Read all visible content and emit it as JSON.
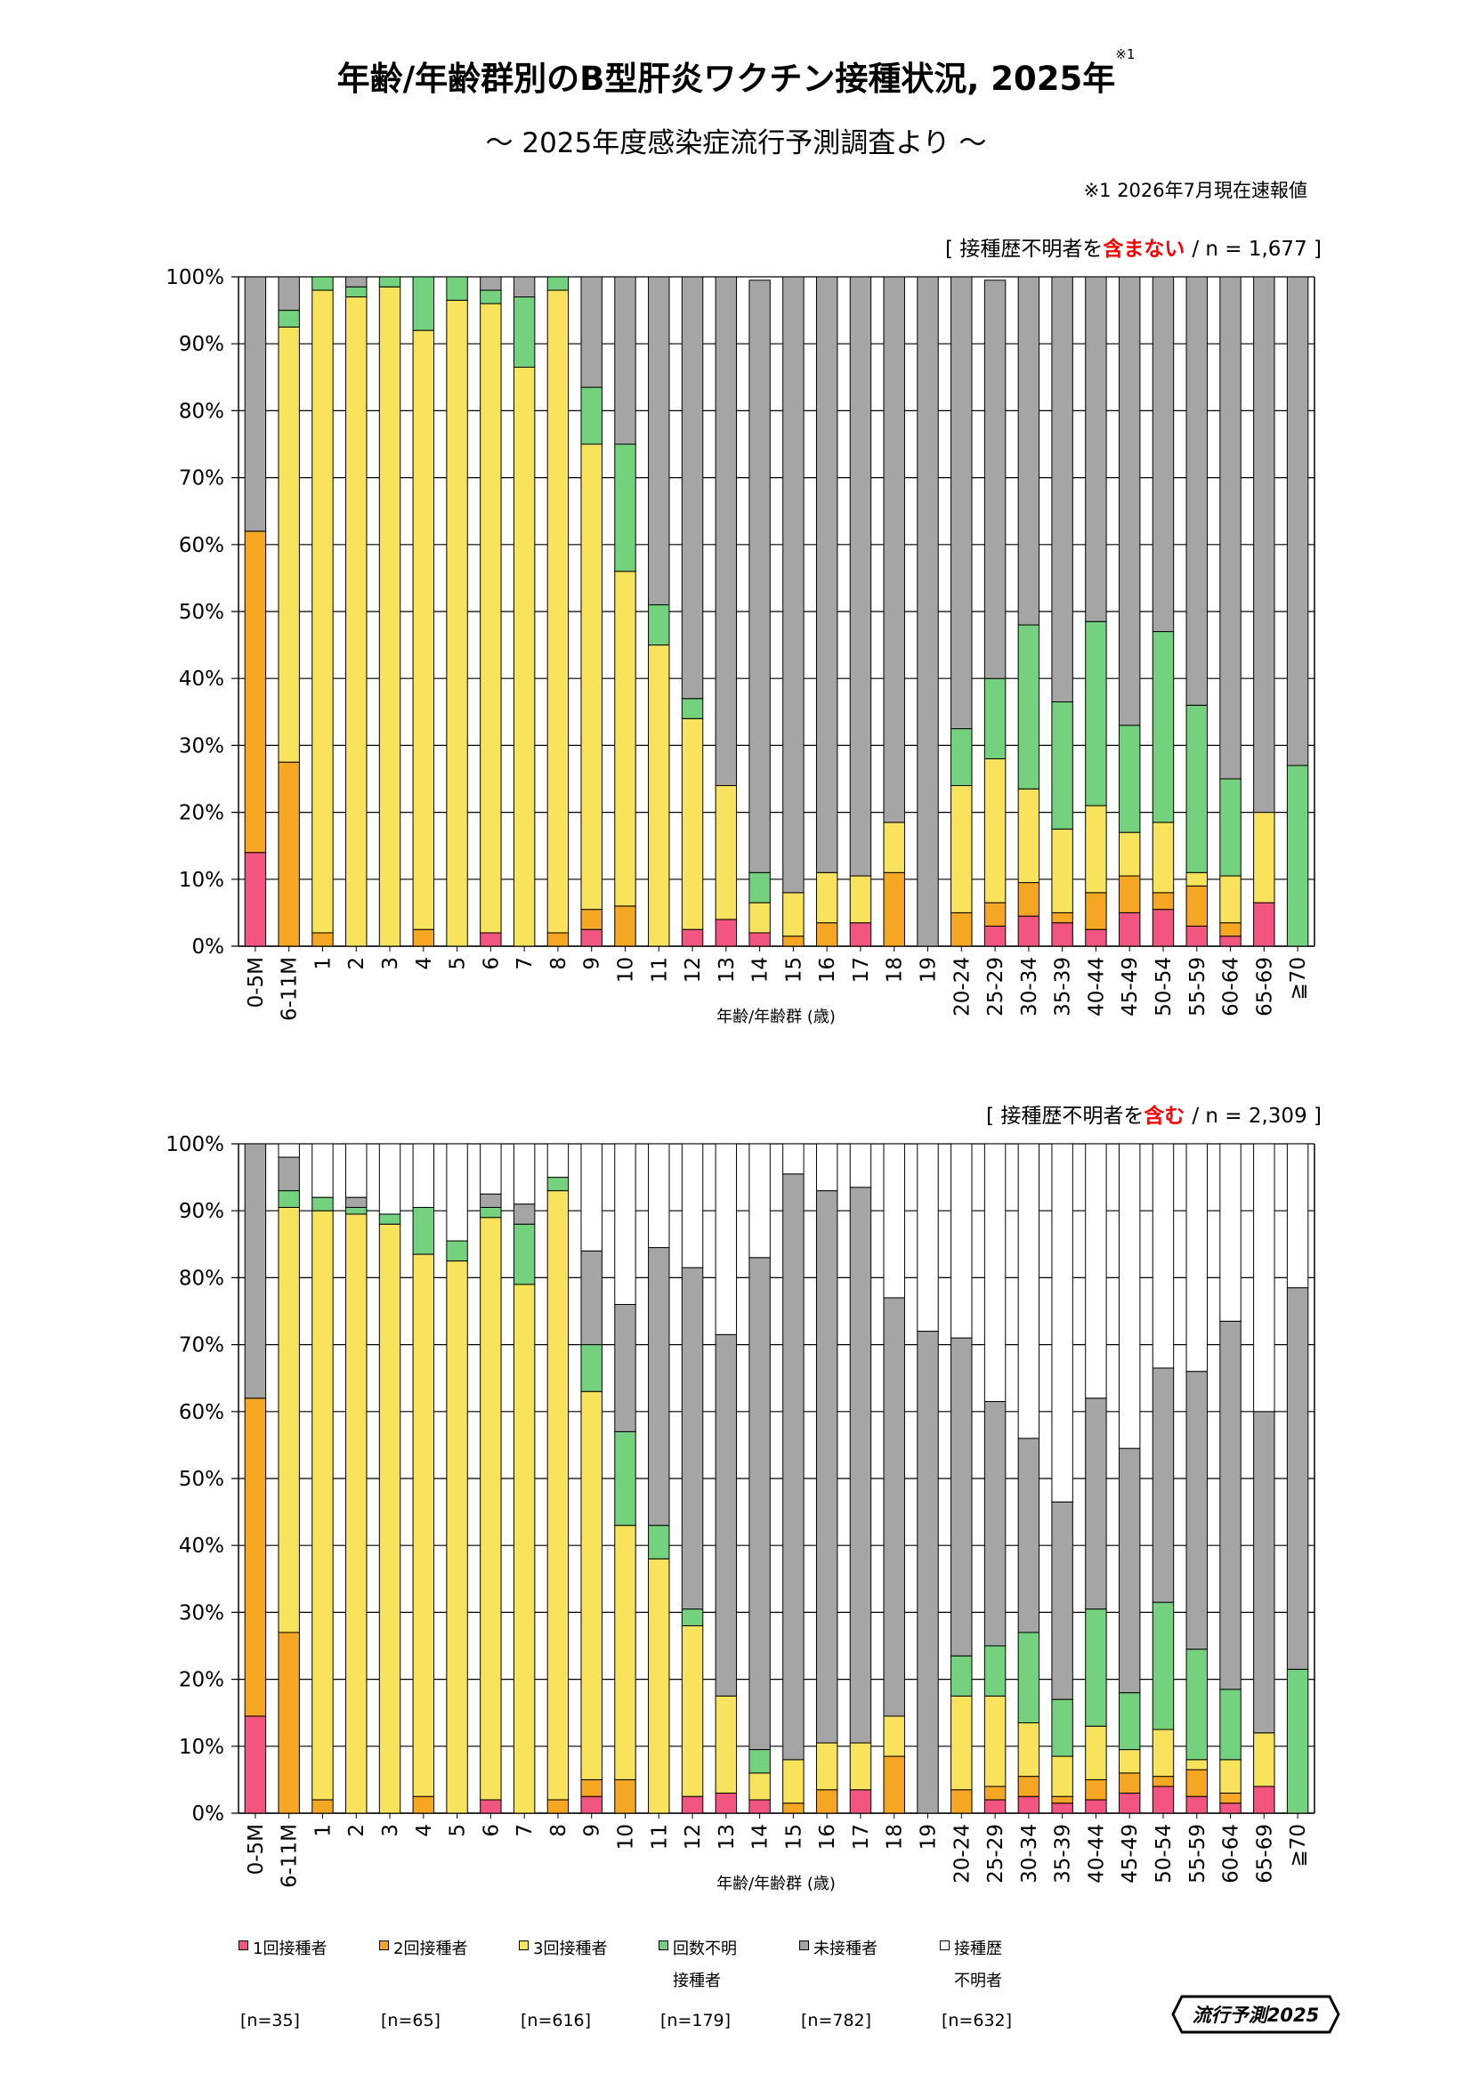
{
  "header": {
    "title": "年齢/年齢群別のB型肝炎ワクチン接種状況, 2025年",
    "title_note": "※1",
    "subtitle": "～ 2025年度感染症流行予測調査より ～",
    "footnote": "※1  2026年7月現在速報値"
  },
  "colors": {
    "dose1": "#f2557f",
    "dose2": "#f5a623",
    "dose3": "#f9e35c",
    "unknown_count": "#74d27e",
    "unvaccinated": "#a5a5a5",
    "unknown_history": "#ffffff",
    "highlight_red": "#ff0000"
  },
  "chart_data": [
    {
      "type": "bar",
      "stacked": true,
      "note_prefix": "[ 接種歴不明者を",
      "note_highlight": "含まない",
      "note_suffix": "/ n = 1,677 ]",
      "xlabel": "年齢/年齢群 (歳)",
      "ylim": [
        0,
        100
      ],
      "yticks": [
        "0%",
        "10%",
        "20%",
        "30%",
        "40%",
        "50%",
        "60%",
        "70%",
        "80%",
        "90%",
        "100%"
      ],
      "categories": [
        "0-5M",
        "6-11M",
        "1",
        "2",
        "3",
        "4",
        "5",
        "6",
        "7",
        "8",
        "9",
        "10",
        "11",
        "12",
        "13",
        "14",
        "15",
        "16",
        "17",
        "18",
        "19",
        "20-24",
        "25-29",
        "30-34",
        "35-39",
        "40-44",
        "45-49",
        "50-54",
        "55-59",
        "60-64",
        "65-69",
        "≧70"
      ],
      "series": [
        {
          "name": "1回接種者",
          "values": [
            14,
            0,
            0,
            0,
            0,
            0,
            0,
            2,
            0,
            0,
            2.5,
            0,
            0,
            2.5,
            4,
            2,
            0,
            0,
            3.5,
            0,
            0,
            0,
            3,
            4.5,
            3.5,
            2.5,
            5,
            5.5,
            3,
            1.5,
            6.5,
            0
          ]
        },
        {
          "name": "2回接種者",
          "values": [
            48,
            27.5,
            2,
            0,
            0,
            2.5,
            0,
            0,
            0,
            2,
            3,
            6,
            0,
            0,
            0,
            0,
            1.5,
            3.5,
            0,
            11,
            0,
            5,
            3.5,
            5,
            1.5,
            5.5,
            5.5,
            2.5,
            6,
            2,
            0,
            0
          ]
        },
        {
          "name": "3回接種者",
          "values": [
            0,
            65,
            96,
            97,
            98.5,
            89.5,
            96.5,
            94,
            86.5,
            96,
            69.5,
            50,
            45,
            31.5,
            20,
            4.5,
            6.5,
            7.5,
            7,
            7.5,
            0,
            19,
            21.5,
            14,
            12.5,
            13,
            6.5,
            10.5,
            2,
            7,
            13.5,
            0
          ]
        },
        {
          "name": "回数不明接種者",
          "values": [
            0,
            2.5,
            2,
            1.5,
            1.5,
            8,
            3.5,
            2,
            10.5,
            2,
            8.5,
            19,
            6,
            3,
            0,
            4.5,
            0,
            0,
            0,
            0,
            0,
            8.5,
            12,
            24.5,
            19,
            27.5,
            16,
            28.5,
            25,
            14.5,
            0,
            27
          ]
        },
        {
          "name": "未接種者",
          "values": [
            38,
            5,
            0,
            1.5,
            0,
            0,
            0,
            2,
            3,
            0,
            16.5,
            25,
            49,
            63,
            76,
            88.5,
            92,
            89,
            89.5,
            81.5,
            100,
            67.5,
            59.5,
            52,
            63.5,
            51.5,
            67,
            53,
            64,
            75,
            80,
            73
          ]
        }
      ]
    },
    {
      "type": "bar",
      "stacked": true,
      "note_prefix": "[ 接種歴不明者を",
      "note_highlight": "含む",
      "note_suffix": "/ n = 2,309 ]",
      "xlabel": "年齢/年齢群 (歳)",
      "ylim": [
        0,
        100
      ],
      "yticks": [
        "0%",
        "10%",
        "20%",
        "30%",
        "40%",
        "50%",
        "60%",
        "70%",
        "80%",
        "90%",
        "100%"
      ],
      "categories": [
        "0-5M",
        "6-11M",
        "1",
        "2",
        "3",
        "4",
        "5",
        "6",
        "7",
        "8",
        "9",
        "10",
        "11",
        "12",
        "13",
        "14",
        "15",
        "16",
        "17",
        "18",
        "19",
        "20-24",
        "25-29",
        "30-34",
        "35-39",
        "40-44",
        "45-49",
        "50-54",
        "55-59",
        "60-64",
        "65-69",
        "≧70"
      ],
      "series": [
        {
          "name": "1回接種者",
          "values": [
            14.5,
            0,
            0,
            0,
            0,
            0,
            0,
            2,
            0,
            0,
            2.5,
            0,
            0,
            2.5,
            3,
            2,
            0,
            0,
            3.5,
            0,
            0,
            0,
            2,
            2.5,
            1.5,
            2,
            3,
            4,
            2.5,
            1.5,
            4,
            0
          ]
        },
        {
          "name": "2回接種者",
          "values": [
            47.5,
            27,
            2,
            0,
            0,
            2.5,
            0,
            0,
            0,
            2,
            2.5,
            5,
            0,
            0,
            0,
            0,
            1.5,
            3.5,
            0,
            8.5,
            0,
            3.5,
            2,
            3,
            1,
            3,
            3,
            1.5,
            4,
            1.5,
            0,
            0
          ]
        },
        {
          "name": "3回接種者",
          "values": [
            0,
            63.5,
            88,
            89.5,
            88,
            81,
            82.5,
            87,
            79,
            91,
            58,
            38,
            38,
            25.5,
            14.5,
            4,
            6.5,
            7,
            7,
            6,
            0,
            14,
            13.5,
            8,
            6,
            8,
            3.5,
            7,
            1.5,
            5,
            8,
            0
          ]
        },
        {
          "name": "回数不明接種者",
          "values": [
            0,
            2.5,
            2,
            1,
            1.5,
            7,
            3,
            1.5,
            9,
            2,
            7,
            14,
            5,
            2.5,
            0,
            3.5,
            0,
            0,
            0,
            0,
            0,
            6,
            7.5,
            13.5,
            8.5,
            17.5,
            8.5,
            19,
            16.5,
            10.5,
            0,
            21.5
          ]
        },
        {
          "name": "未接種者",
          "values": [
            38,
            5,
            0,
            1.5,
            0,
            0,
            0,
            2,
            3,
            0,
            14,
            19,
            41.5,
            51,
            54,
            73.5,
            87.5,
            82.5,
            83,
            62.5,
            72,
            47.5,
            36.5,
            29,
            29.5,
            31.5,
            36.5,
            35,
            41.5,
            55,
            48,
            57
          ]
        },
        {
          "name": "接種歴不明者",
          "values": [
            0,
            2,
            8,
            8,
            10.5,
            9.5,
            14.5,
            7.5,
            9,
            5,
            16,
            24,
            15.5,
            18.5,
            28.5,
            17,
            4.5,
            7,
            6.5,
            23,
            28,
            29,
            38.5,
            44,
            53.5,
            38,
            45.5,
            33.5,
            34,
            26.5,
            40,
            21.5
          ]
        }
      ]
    }
  ],
  "legend": [
    {
      "key": "dose1",
      "label": "1回接種者",
      "label2": "",
      "n": "[n=35]"
    },
    {
      "key": "dose2",
      "label": "2回接種者",
      "label2": "",
      "n": "[n=65]"
    },
    {
      "key": "dose3",
      "label": "3回接種者",
      "label2": "",
      "n": "[n=616]"
    },
    {
      "key": "unknown_count",
      "label": "回数不明",
      "label2": "接種者",
      "n": "[n=179]"
    },
    {
      "key": "unvaccinated",
      "label": "未接種者",
      "label2": "",
      "n": "[n=782]"
    },
    {
      "key": "unknown_history",
      "label": "接種歴",
      "label2": "不明者",
      "n": "[n=632]"
    }
  ],
  "brand": {
    "label": "流行予測2025"
  }
}
